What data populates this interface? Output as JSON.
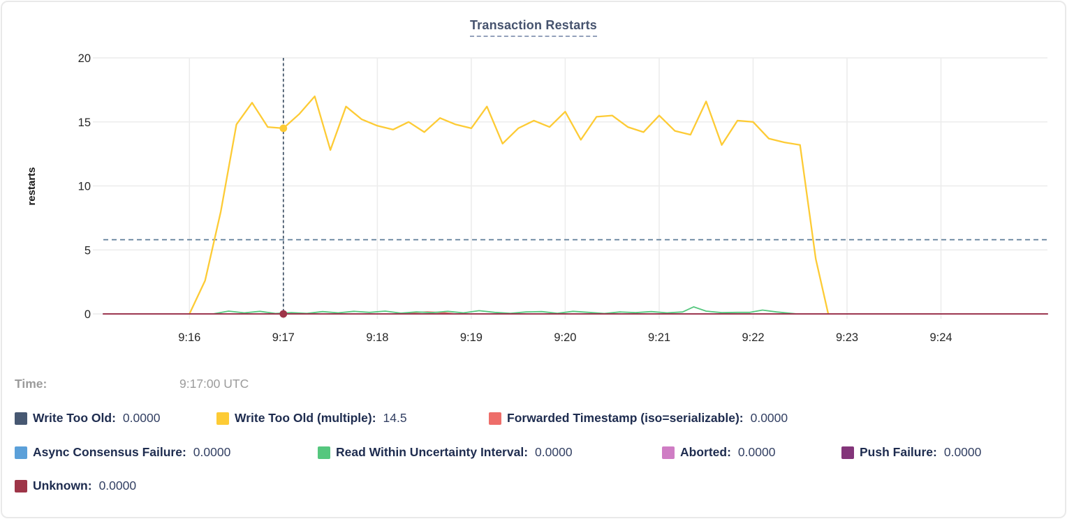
{
  "tooltip": {
    "time_label": "Time:",
    "time_value": "9:17:00 UTC"
  },
  "chart_data": {
    "type": "line",
    "title": "Transaction Restarts",
    "ylabel": "restarts",
    "ylim": [
      0,
      20
    ],
    "y_ticks": [
      0,
      5,
      10,
      15,
      20
    ],
    "x_unit": "seconds since 9:15:00 UTC",
    "x_domain_sec": [
      5,
      608
    ],
    "x_ticks": [
      {
        "sec": 60,
        "label": "9:16"
      },
      {
        "sec": 120,
        "label": "9:17"
      },
      {
        "sec": 180,
        "label": "9:18"
      },
      {
        "sec": 240,
        "label": "9:19"
      },
      {
        "sec": 300,
        "label": "9:20"
      },
      {
        "sec": 360,
        "label": "9:21"
      },
      {
        "sec": 420,
        "label": "9:22"
      },
      {
        "sec": 480,
        "label": "9:23"
      },
      {
        "sec": 540,
        "label": "9:24"
      }
    ],
    "grid": true,
    "legend_position": "bottom",
    "crosshair": {
      "sec": 120,
      "hline_value": 5.8
    },
    "highlight_dots": [
      {
        "series": "Write Too Old (multiple)",
        "sec": 120,
        "value": 14.5
      },
      {
        "series": "Unknown",
        "sec": 120,
        "value": 0
      }
    ],
    "series": [
      {
        "label": "Write Too Old",
        "color": "#475872",
        "value": "0.0000",
        "points": [
          [
            5,
            0
          ],
          [
            608,
            0
          ]
        ]
      },
      {
        "label": "Write Too Old (multiple)",
        "color": "#fdcb35",
        "value": "14.5",
        "points": [
          [
            60,
            0
          ],
          [
            70,
            2.6
          ],
          [
            80,
            8.0
          ],
          [
            90,
            14.8
          ],
          [
            100,
            16.5
          ],
          [
            110,
            14.6
          ],
          [
            120,
            14.5
          ],
          [
            130,
            15.6
          ],
          [
            140,
            17.0
          ],
          [
            150,
            12.8
          ],
          [
            160,
            16.2
          ],
          [
            170,
            15.2
          ],
          [
            180,
            14.7
          ],
          [
            190,
            14.4
          ],
          [
            200,
            15.0
          ],
          [
            210,
            14.2
          ],
          [
            220,
            15.3
          ],
          [
            230,
            14.8
          ],
          [
            240,
            14.5
          ],
          [
            250,
            16.2
          ],
          [
            260,
            13.3
          ],
          [
            270,
            14.5
          ],
          [
            280,
            15.1
          ],
          [
            290,
            14.6
          ],
          [
            300,
            15.8
          ],
          [
            310,
            13.6
          ],
          [
            320,
            15.4
          ],
          [
            330,
            15.5
          ],
          [
            340,
            14.6
          ],
          [
            350,
            14.2
          ],
          [
            360,
            15.5
          ],
          [
            370,
            14.3
          ],
          [
            380,
            14.0
          ],
          [
            390,
            16.6
          ],
          [
            400,
            13.2
          ],
          [
            410,
            15.1
          ],
          [
            420,
            15.0
          ],
          [
            430,
            13.7
          ],
          [
            440,
            13.4
          ],
          [
            450,
            13.2
          ],
          [
            460,
            4.3
          ],
          [
            468,
            0
          ]
        ]
      },
      {
        "label": "Forwarded Timestamp (iso=serializable)",
        "color": "#ee6e6a",
        "value": "0.0000",
        "points": [
          [
            5,
            0
          ],
          [
            190,
            0
          ],
          [
            200,
            0.08
          ],
          [
            212,
            0.15
          ],
          [
            222,
            0.1
          ],
          [
            230,
            0
          ],
          [
            608,
            0
          ]
        ]
      },
      {
        "label": "Async Consensus Failure",
        "color": "#5ba0d9",
        "value": "0.0000",
        "points": [
          [
            5,
            0
          ],
          [
            608,
            0
          ]
        ]
      },
      {
        "label": "Read Within Uncertainty Interval",
        "color": "#55c77e",
        "value": "0.0000",
        "points": [
          [
            5,
            0
          ],
          [
            75,
            0
          ],
          [
            85,
            0.22
          ],
          [
            95,
            0.08
          ],
          [
            105,
            0.2
          ],
          [
            115,
            0.03
          ],
          [
            125,
            0.1
          ],
          [
            135,
            0.04
          ],
          [
            145,
            0.18
          ],
          [
            155,
            0.08
          ],
          [
            165,
            0.2
          ],
          [
            175,
            0.12
          ],
          [
            185,
            0.22
          ],
          [
            195,
            0.06
          ],
          [
            205,
            0.15
          ],
          [
            215,
            0.1
          ],
          [
            225,
            0.2
          ],
          [
            235,
            0.08
          ],
          [
            245,
            0.25
          ],
          [
            255,
            0.12
          ],
          [
            265,
            0.05
          ],
          [
            275,
            0.15
          ],
          [
            285,
            0.18
          ],
          [
            295,
            0.05
          ],
          [
            305,
            0.2
          ],
          [
            315,
            0.12
          ],
          [
            325,
            0.03
          ],
          [
            335,
            0.15
          ],
          [
            345,
            0.1
          ],
          [
            355,
            0.18
          ],
          [
            365,
            0.08
          ],
          [
            375,
            0.15
          ],
          [
            382,
            0.55
          ],
          [
            390,
            0.22
          ],
          [
            400,
            0.1
          ],
          [
            410,
            0.12
          ],
          [
            418,
            0.12
          ],
          [
            426,
            0.3
          ],
          [
            435,
            0.15
          ],
          [
            448,
            0
          ],
          [
            608,
            0
          ]
        ]
      },
      {
        "label": "Aborted",
        "color": "#cf7dc4",
        "value": "0.0000",
        "points": [
          [
            5,
            0
          ],
          [
            608,
            0
          ]
        ]
      },
      {
        "label": "Push Failure",
        "color": "#83357a",
        "value": "0.0000",
        "points": [
          [
            5,
            0
          ],
          [
            608,
            0
          ]
        ]
      },
      {
        "label": "Unknown",
        "color": "#9e3548",
        "value": "0.0000",
        "points": [
          [
            5,
            0
          ],
          [
            608,
            0
          ]
        ]
      }
    ]
  },
  "legend": {
    "rows": [
      [
        0,
        1,
        2
      ],
      [
        3,
        4,
        5,
        6
      ],
      [
        7
      ]
    ]
  }
}
